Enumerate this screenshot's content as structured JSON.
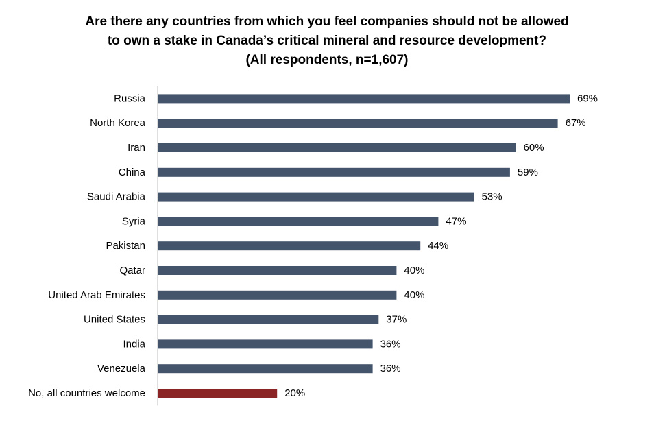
{
  "chart_data": {
    "type": "bar",
    "orientation": "horizontal",
    "title_lines": [
      "Are there any countries from which you feel companies should not be allowed",
      "to own a stake in Canada’s critical mineral and resource development?",
      "(All respondents, n=1,607)"
    ],
    "categories": [
      "Russia",
      "North Korea",
      "Iran",
      "China",
      "Saudi Arabia",
      "Syria",
      "Pakistan",
      "Qatar",
      "United Arab Emirates",
      "United States",
      "India",
      "Venezuela",
      "No, all countries welcome"
    ],
    "values": [
      69,
      67,
      60,
      59,
      53,
      47,
      44,
      40,
      40,
      37,
      36,
      36,
      20
    ],
    "value_labels": [
      "69%",
      "67%",
      "60%",
      "59%",
      "53%",
      "47%",
      "44%",
      "40%",
      "40%",
      "37%",
      "36%",
      "36%",
      "20%"
    ],
    "xlim": [
      0,
      69
    ],
    "grid": false,
    "legend": "none",
    "colors": {
      "default_bar": "#44546a",
      "highlight_bar": "#8b2424",
      "axis": "#bfbfbf"
    },
    "highlight_index": 12
  }
}
